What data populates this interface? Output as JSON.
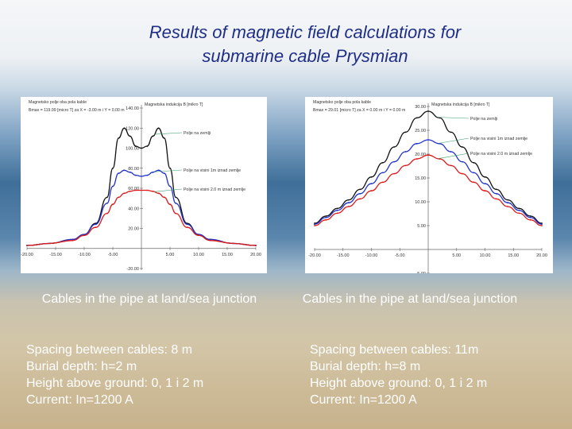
{
  "title_line1": "Results of magnetic field calculations for",
  "title_line2": "submarine cable Prysmian",
  "chart_data": [
    {
      "type": "line",
      "header_lines": [
        "Magnetsko polje oba pola kable",
        "Bmax = 119.99 [micro T] za X = -3.00 m i Y = 0.00 m"
      ],
      "ylabel": "Magnetska indukcija B [mikro T]",
      "xlim": [
        -20,
        20
      ],
      "ylim": [
        -20,
        140
      ],
      "xticks": [
        "-20.00",
        "-15.00",
        "-10.00",
        "-5.00",
        "5.00",
        "10.00",
        "15.00",
        "20.00"
      ],
      "yticks": [
        "140.00",
        "120.00",
        "100.00",
        "80.00",
        "60.00",
        "40.00",
        "20.00",
        "-20.00"
      ],
      "annotations": [
        "Polje na zemlji",
        "Polje na visini 1m iznad zemlje",
        "Polje na visini 2.0 m iznad zemlje"
      ],
      "series": [
        {
          "name": "Polje na zemlji",
          "color": "#111111",
          "x": [
            -20,
            -16,
            -12,
            -10,
            -8,
            -6,
            -5,
            -4,
            -3,
            -2,
            -1,
            0,
            1,
            2,
            3,
            4,
            5,
            6,
            8,
            10,
            12,
            16,
            20
          ],
          "y": [
            3,
            5,
            9,
            14,
            25,
            51,
            80,
            110,
            120,
            112,
            102,
            100,
            102,
            112,
            120,
            110,
            80,
            51,
            25,
            14,
            9,
            5,
            3
          ]
        },
        {
          "name": "Polje na visini 1m iznad zemlje",
          "color": "#2233cc",
          "x": [
            -20,
            -16,
            -12,
            -10,
            -8,
            -6,
            -5,
            -4,
            -3,
            -2,
            -1,
            0,
            1,
            2,
            3,
            4,
            5,
            6,
            8,
            10,
            12,
            16,
            20
          ],
          "y": [
            3,
            5,
            9,
            14,
            24,
            45,
            62,
            75,
            78,
            76,
            73,
            72,
            73,
            76,
            78,
            75,
            62,
            45,
            24,
            14,
            9,
            5,
            3
          ]
        },
        {
          "name": "Polje na visini 2.0 m iznad zemlje",
          "color": "#dd1a1a",
          "x": [
            -20,
            -16,
            -12,
            -10,
            -8,
            -6,
            -5,
            -4,
            -3,
            -2,
            -1,
            0,
            1,
            2,
            3,
            4,
            5,
            6,
            8,
            10,
            12,
            16,
            20
          ],
          "y": [
            3,
            5,
            8,
            13,
            21,
            35,
            44,
            51,
            55,
            57,
            58,
            58,
            58,
            57,
            55,
            51,
            44,
            35,
            21,
            13,
            8,
            5,
            3
          ]
        }
      ]
    },
    {
      "type": "line",
      "header_lines": [
        "Magnetsko polje oba pola kable",
        "Bmax = 29.01 [micro T] za X = 0.00 m i Y = 0.00 m"
      ],
      "ylabel": "Magnetska indukcija B [mikro T]",
      "xlim": [
        -20,
        20
      ],
      "ylim": [
        -5,
        30
      ],
      "xticks": [
        "-20.00",
        "-15.00",
        "-10.00",
        "-5.00",
        "5.00",
        "10.00",
        "15.00",
        "20.00"
      ],
      "yticks": [
        "30.00",
        "25.00",
        "20.00",
        "15.00",
        "10.00",
        "5.00",
        "-5.00"
      ],
      "annotations": [
        "Polje na zemlji",
        "Polje na visini 1m iznad zemlje",
        "Polje na visini 2.0 m iznad zemlje"
      ],
      "series": [
        {
          "name": "Polje na zemlji",
          "color": "#111111",
          "x": [
            -20,
            -18,
            -16,
            -14,
            -12,
            -10,
            -8,
            -6,
            -4,
            -2,
            0,
            2,
            4,
            6,
            8,
            10,
            12,
            14,
            16,
            18,
            20
          ],
          "y": [
            5.5,
            7,
            8.6,
            10.4,
            12.6,
            15.2,
            18.2,
            21.5,
            24.6,
            27.6,
            29,
            27.6,
            24.6,
            21.5,
            18.2,
            15.2,
            12.6,
            10.4,
            8.6,
            7,
            5.5
          ]
        },
        {
          "name": "Polje na visini 1m iznad zemlje",
          "color": "#2233cc",
          "x": [
            -20,
            -18,
            -16,
            -14,
            -12,
            -10,
            -8,
            -6,
            -4,
            -2,
            0,
            2,
            4,
            6,
            8,
            10,
            12,
            14,
            16,
            18,
            20
          ],
          "y": [
            5.3,
            6.7,
            8.2,
            9.8,
            11.7,
            13.8,
            16.1,
            18.4,
            20.5,
            22.2,
            23,
            22.2,
            20.5,
            18.4,
            16.1,
            13.8,
            11.7,
            9.8,
            8.2,
            6.7,
            5.3
          ]
        },
        {
          "name": "Polje na visini 2.0 m iznad zemlje",
          "color": "#dd1a1a",
          "x": [
            -20,
            -18,
            -16,
            -14,
            -12,
            -10,
            -8,
            -6,
            -4,
            -2,
            0,
            2,
            4,
            6,
            8,
            10,
            12,
            14,
            16,
            18,
            20
          ],
          "y": [
            5,
            6.2,
            7.6,
            9,
            10.6,
            12.3,
            14.1,
            15.9,
            17.6,
            19,
            19.8,
            19,
            17.6,
            15.9,
            14.1,
            12.3,
            10.6,
            9,
            7.6,
            6.2,
            5
          ]
        }
      ]
    }
  ],
  "left_caption": {
    "head": "Cables in the pipe at land/sea junction",
    "lines": [
      "Spacing between cables: 8 m",
      "Burial depth: h=2 m",
      "Height above ground: 0, 1 i 2 m",
      "Current: In=1200 A"
    ]
  },
  "right_caption": {
    "head": "Cables in the pipe at land/sea junction",
    "lines": [
      "Spacing between cables: 11m",
      "Burial depth: h=8 m",
      "Height above ground: 0, 1 i 2 m",
      "Current: In=1200 A"
    ]
  }
}
